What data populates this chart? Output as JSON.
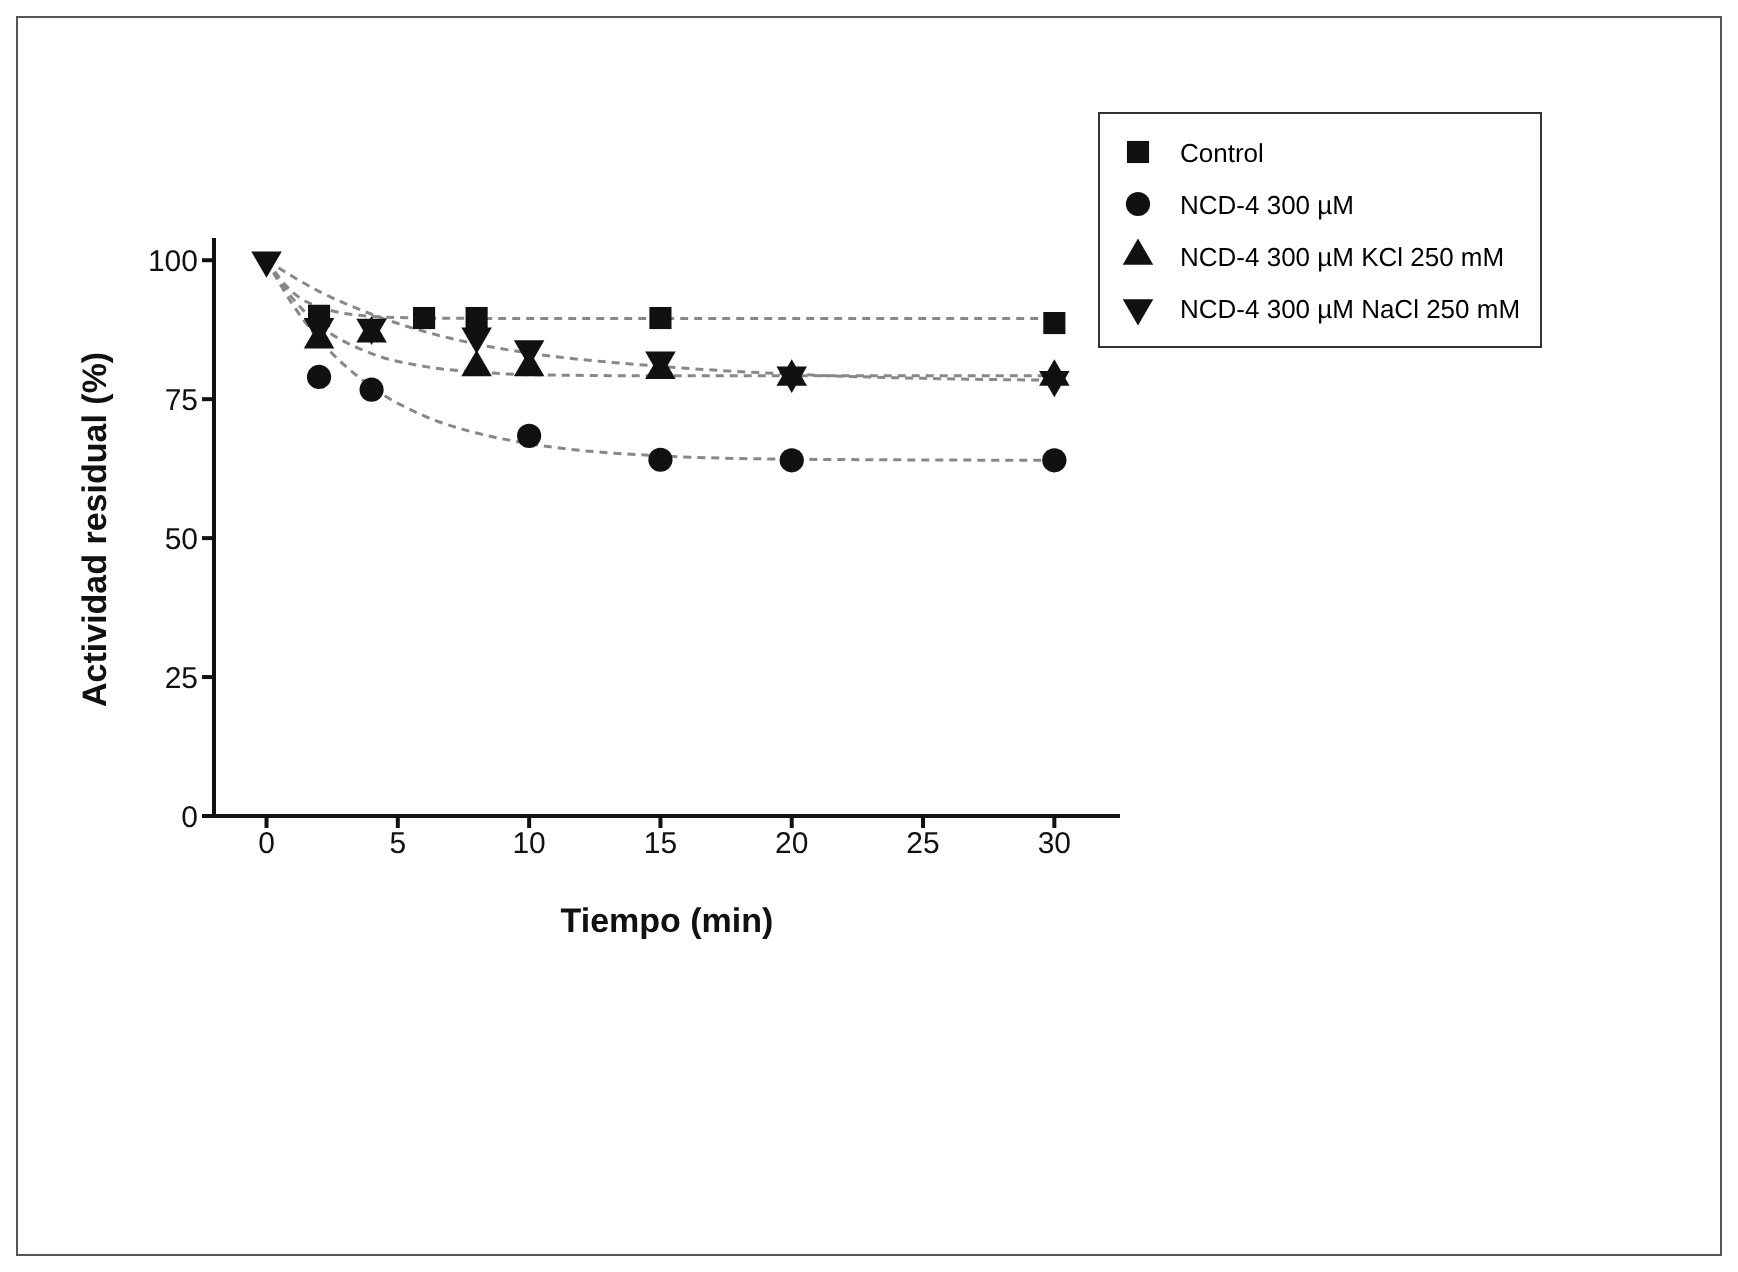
{
  "chart_data": {
    "type": "scatter",
    "xlabel": "Tiempo (min)",
    "ylabel": "Actividad residual (%)",
    "xlim": [
      -2,
      32.5
    ],
    "xticks": [
      0,
      5,
      10,
      15,
      20,
      25,
      30
    ],
    "ylim": [
      0,
      104
    ],
    "yticks": [
      0,
      25,
      50,
      75,
      100
    ],
    "grid": false,
    "legend": "top right",
    "series": [
      {
        "name": "Control",
        "color": "#111111",
        "marker": "square",
        "x": [
          2,
          6,
          8,
          15,
          30
        ],
        "values": [
          90,
          89.6,
          89.6,
          89.6,
          88.7
        ]
      },
      {
        "name": "NCD-4 300 µM",
        "color": "#111111",
        "marker": "circle",
        "x": [
          2,
          4,
          10,
          15,
          20,
          30
        ],
        "values": [
          79,
          76.7,
          68.4,
          64.1,
          64,
          64
        ]
      },
      {
        "name": "NCD-4 300 µM KCl 250 mM",
        "color": "#111111",
        "marker": "triangle",
        "x": [
          2,
          4,
          8,
          10,
          15,
          20,
          30
        ],
        "values": [
          85.7,
          86.8,
          80.7,
          80.7,
          80.2,
          79,
          79
        ]
      },
      {
        "name": "NCD-4 300 µM NaCl 250 mM",
        "color": "#111111",
        "marker": "triangle-down",
        "x": [
          0,
          2,
          4,
          8,
          10,
          15,
          20,
          30
        ],
        "values": [
          100,
          88,
          87.9,
          86.3,
          84,
          82,
          79.3,
          78.5
        ]
      },
      {
        "type": "line",
        "color": "#888888",
        "marker": "none",
        "line_style": "dashed",
        "x": [
          0,
          1,
          2,
          4,
          6,
          10,
          20,
          30
        ],
        "values": [
          100,
          94.2,
          91.6,
          89.9,
          89.6,
          89.5,
          89.5,
          89.5
        ]
      },
      {
        "type": "line",
        "color": "#888888",
        "marker": "none",
        "line_style": "dashed",
        "x": [
          0,
          1,
          2,
          4,
          6,
          8,
          10,
          15,
          20,
          30
        ],
        "values": [
          100,
          92,
          85.8,
          77.2,
          72,
          68.9,
          67,
          64.8,
          64.2,
          64
        ]
      },
      {
        "type": "line",
        "color": "#888888",
        "marker": "none",
        "line_style": "dashed",
        "x": [
          0,
          1,
          2,
          4,
          6,
          8,
          10,
          15,
          30
        ],
        "values": [
          100,
          93.1,
          88.4,
          83.2,
          80.9,
          79.9,
          79.4,
          79.2,
          79.2
        ]
      },
      {
        "type": "line",
        "color": "#888888",
        "marker": "none",
        "line_style": "dashed",
        "x": [
          0,
          2,
          4,
          8,
          10,
          15,
          20,
          30
        ],
        "values": [
          100,
          94.4,
          90.3,
          84.9,
          83.3,
          80.9,
          79.5,
          78.4
        ]
      }
    ]
  }
}
